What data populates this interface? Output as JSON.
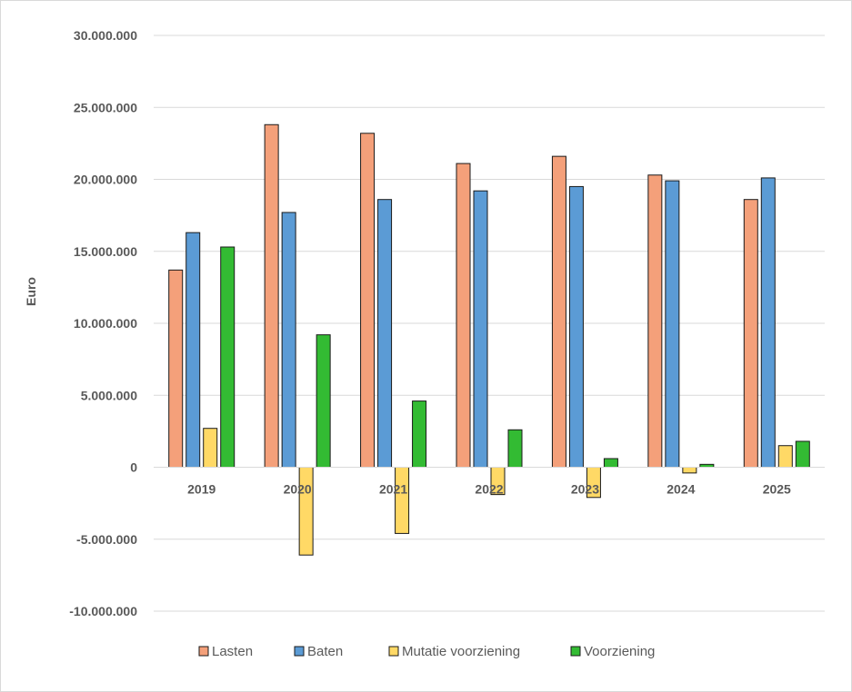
{
  "chart_data": {
    "type": "bar",
    "title": "",
    "xlabel": "",
    "ylabel": "Euro",
    "ylim": [
      -10000000,
      30000000
    ],
    "yticks": [
      -10000000,
      -5000000,
      0,
      5000000,
      10000000,
      15000000,
      20000000,
      25000000,
      30000000
    ],
    "ytick_labels": [
      "-10.000.000",
      "-5.000.000",
      "0",
      "5.000.000",
      "10.000.000",
      "15.000.000",
      "20.000.000",
      "25.000.000",
      "30.000.000"
    ],
    "grid": true,
    "legend_position": "bottom",
    "categories": [
      "2019",
      "2020",
      "2021",
      "2022",
      "2023",
      "2024",
      "2025"
    ],
    "series": [
      {
        "name": "Lasten",
        "color": "#F4A07A",
        "values": [
          13700000,
          23800000,
          23200000,
          21100000,
          21600000,
          20300000,
          18600000
        ]
      },
      {
        "name": "Baten",
        "color": "#5B9BD5",
        "values": [
          16300000,
          17700000,
          18600000,
          19200000,
          19500000,
          19900000,
          20100000
        ]
      },
      {
        "name": "Mutatie voorziening",
        "color": "#FFD966",
        "values": [
          2700000,
          -6100000,
          -4600000,
          -1900000,
          -2100000,
          -400000,
          1500000
        ]
      },
      {
        "name": "Voorziening",
        "color": "#33BB33",
        "values": [
          15300000,
          9200000,
          4600000,
          2600000,
          600000,
          200000,
          1800000
        ]
      }
    ]
  }
}
